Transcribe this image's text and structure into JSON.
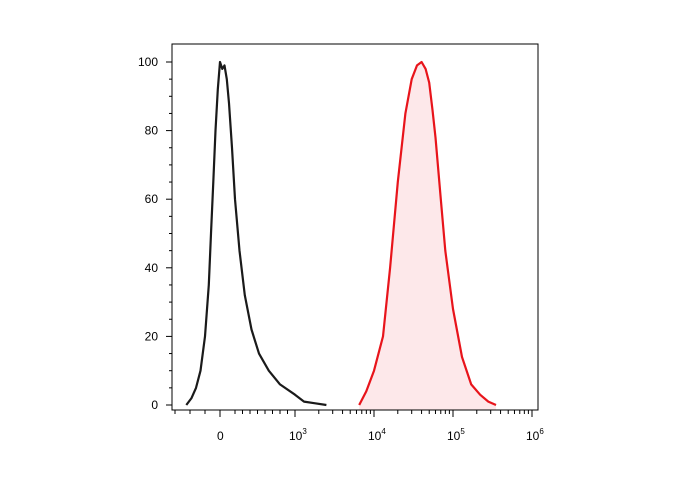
{
  "chart_data": {
    "type": "area",
    "title": "",
    "xlabel": "",
    "ylabel": "",
    "x_scale": "biexponential",
    "ylim": [
      0,
      100
    ],
    "y_ticks": [
      0,
      20,
      40,
      60,
      80,
      100
    ],
    "x_ticks": [
      {
        "base": "0",
        "exp": "",
        "value": 0
      },
      {
        "base": "10",
        "exp": "3",
        "value": 1000
      },
      {
        "base": "10",
        "exp": "4",
        "value": 10000
      },
      {
        "base": "10",
        "exp": "5",
        "value": 100000
      },
      {
        "base": "10",
        "exp": "6",
        "value": 1000000
      }
    ],
    "grid": false,
    "legend": "none",
    "series": [
      {
        "color": "#1a1a1a",
        "filled": false,
        "x": [
          -450,
          -380,
          -320,
          -260,
          -200,
          -150,
          -120,
          -90,
          -60,
          -30,
          0,
          30,
          60,
          90,
          120,
          160,
          200,
          260,
          330,
          420,
          520,
          650,
          800,
          1000,
          1300,
          1800,
          2500
        ],
        "y": [
          0,
          2,
          5,
          10,
          20,
          35,
          50,
          65,
          80,
          92,
          100,
          98,
          99,
          95,
          88,
          75,
          60,
          45,
          32,
          22,
          15,
          10,
          6,
          3,
          1,
          0.5,
          0
        ]
      },
      {
        "color": "#e8141b",
        "fill": "#fde8ea",
        "filled": true,
        "x": [
          6500,
          8000,
          10000,
          13000,
          16000,
          20000,
          25000,
          30000,
          35000,
          40000,
          45000,
          50000,
          55000,
          60000,
          70000,
          80000,
          100000,
          130000,
          170000,
          220000,
          280000,
          350000
        ],
        "y": [
          0,
          4,
          10,
          20,
          40,
          65,
          85,
          95,
          99,
          100,
          98,
          94,
          86,
          78,
          60,
          45,
          28,
          14,
          6,
          3,
          1,
          0
        ]
      }
    ]
  }
}
